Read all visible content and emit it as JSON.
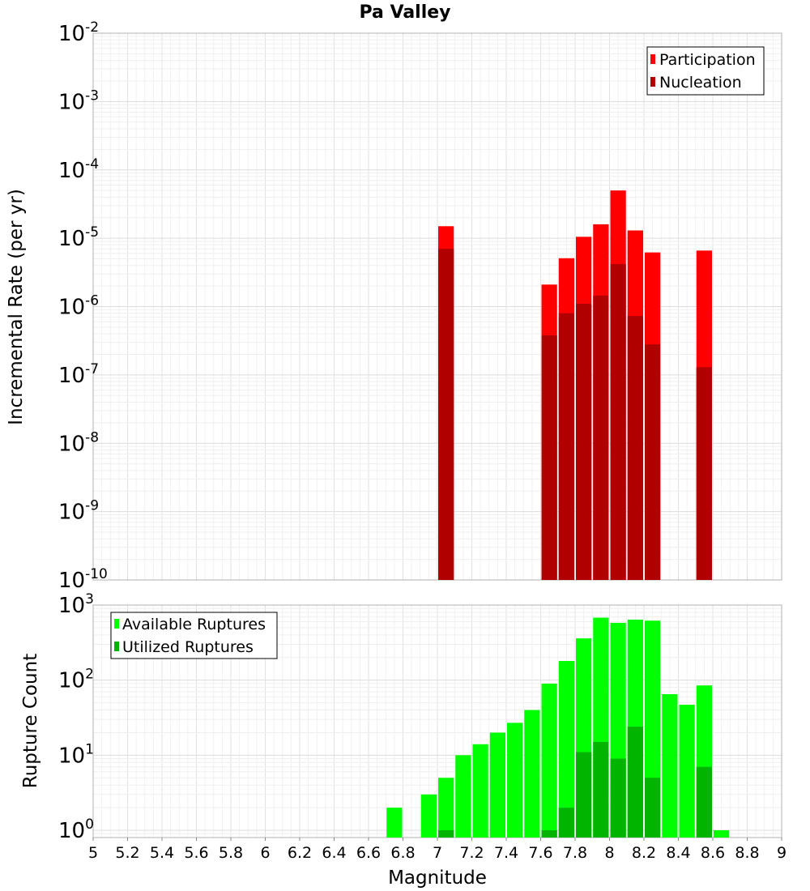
{
  "chart_data": [
    {
      "type": "bar",
      "title": "Pa Valley",
      "ylabel": "Incremental Rate (per yr)",
      "xlabel": "",
      "yscale": "log",
      "ylim": [
        1e-10,
        0.01
      ],
      "xlim": [
        5,
        9
      ],
      "bin_width": 0.1,
      "grid": true,
      "legend_position": "top-right",
      "y_ticks": [
        {
          "base": "10",
          "exp": "-2",
          "value": 0.01
        },
        {
          "base": "10",
          "exp": "-3",
          "value": 0.001
        },
        {
          "base": "10",
          "exp": "-4",
          "value": 0.0001
        },
        {
          "base": "10",
          "exp": "-5",
          "value": 1e-05
        },
        {
          "base": "10",
          "exp": "-6",
          "value": 1e-06
        },
        {
          "base": "10",
          "exp": "-7",
          "value": 1e-07
        },
        {
          "base": "10",
          "exp": "-8",
          "value": 1e-08
        },
        {
          "base": "10",
          "exp": "-9",
          "value": 1e-09
        },
        {
          "base": "10",
          "exp": "-10",
          "value": 1e-10
        }
      ],
      "series": [
        {
          "name": "Participation",
          "color": "#ff0000",
          "x": [
            7.05,
            7.65,
            7.75,
            7.85,
            7.95,
            8.05,
            8.15,
            8.25,
            8.55
          ],
          "values": [
            1.5e-05,
            2.1e-06,
            5.1e-06,
            1.05e-05,
            1.6e-05,
            5e-05,
            1.3e-05,
            6.2e-06,
            6.6e-06
          ]
        },
        {
          "name": "Nucleation",
          "color": "#b00000",
          "x": [
            7.05,
            7.65,
            7.75,
            7.85,
            7.95,
            8.05,
            8.15,
            8.25,
            8.55
          ],
          "values": [
            7e-06,
            3.8e-07,
            8e-07,
            1.1e-06,
            1.45e-06,
            4.2e-06,
            7.3e-07,
            2.8e-07,
            1.3e-07
          ]
        }
      ]
    },
    {
      "type": "bar",
      "title": "",
      "ylabel": "Rupture Count",
      "xlabel": "Magnitude",
      "yscale": "log",
      "ylim": [
        0.8,
        1000
      ],
      "xlim": [
        5,
        9
      ],
      "bin_width": 0.1,
      "grid": true,
      "legend_position": "top-left",
      "x_ticks": [
        "5",
        "5.2",
        "5.4",
        "5.6",
        "5.8",
        "6",
        "6.2",
        "6.4",
        "6.6",
        "6.8",
        "7",
        "7.2",
        "7.4",
        "7.6",
        "7.8",
        "8",
        "8.2",
        "8.4",
        "8.6",
        "8.8",
        "9"
      ],
      "y_ticks": [
        {
          "base": "10",
          "exp": "3",
          "value": 1000
        },
        {
          "base": "10",
          "exp": "2",
          "value": 100
        },
        {
          "base": "10",
          "exp": "1",
          "value": 10
        },
        {
          "base": "10",
          "exp": "0",
          "value": 1
        }
      ],
      "series": [
        {
          "name": "Available Ruptures",
          "color": "#00ff00",
          "x": [
            6.75,
            6.95,
            7.05,
            7.15,
            7.25,
            7.35,
            7.45,
            7.55,
            7.65,
            7.75,
            7.85,
            7.95,
            8.05,
            8.15,
            8.25,
            8.35,
            8.45,
            8.55,
            8.65
          ],
          "values": [
            2,
            3,
            5,
            10,
            14,
            20,
            27,
            40,
            90,
            180,
            360,
            680,
            580,
            640,
            620,
            65,
            47,
            85,
            1
          ]
        },
        {
          "name": "Utilized Ruptures",
          "color": "#00b400",
          "x": [
            7.05,
            7.65,
            7.75,
            7.85,
            7.95,
            8.05,
            8.15,
            8.25,
            8.55
          ],
          "values": [
            1,
            1,
            2,
            11,
            15,
            9,
            24,
            5,
            7
          ]
        }
      ]
    }
  ]
}
